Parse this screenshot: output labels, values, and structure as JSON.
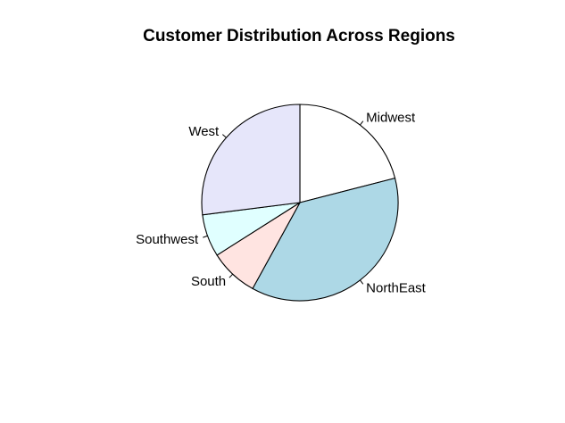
{
  "chart_data": {
    "type": "pie",
    "title": "Customer Distribution Across Regions",
    "start_angle_deg": 90,
    "direction": "clockwise",
    "slices": [
      {
        "label": "Midwest",
        "value": 21,
        "color": "#ffffff"
      },
      {
        "label": "NorthEast",
        "value": 37,
        "color": "#add8e6"
      },
      {
        "label": "South",
        "value": 8,
        "color": "#ffe4e1"
      },
      {
        "label": "Southwest",
        "value": 7,
        "color": "#e0ffff"
      },
      {
        "label": "West",
        "value": 27,
        "color": "#e6e6fa"
      }
    ]
  }
}
